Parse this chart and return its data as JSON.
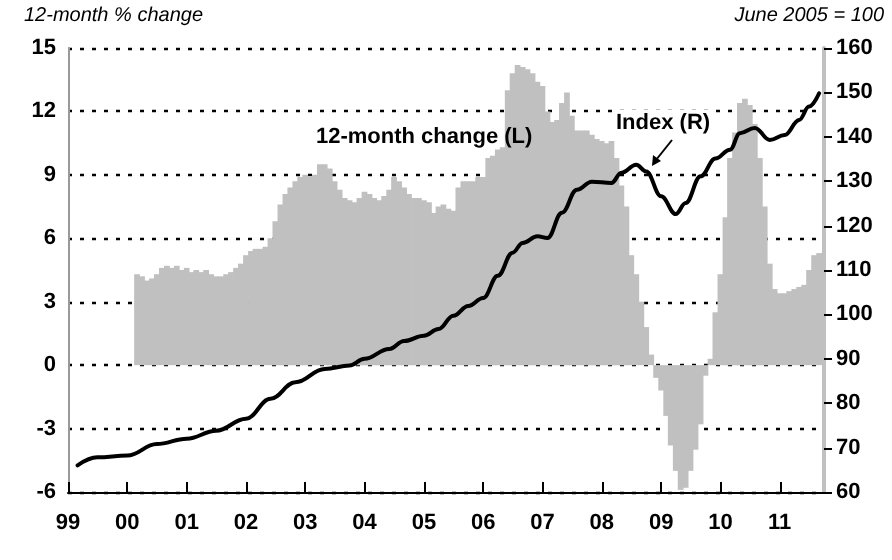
{
  "chart_data": {
    "type": "bar",
    "ylabel": "12-month % change",
    "y2label": "June 2005 = 100",
    "xlim": [
      "1999-01",
      "2011-10"
    ],
    "xticks": [
      {
        "value": "1999-01",
        "label": "99"
      },
      {
        "value": "2000-01",
        "label": "00"
      },
      {
        "value": "2001-01",
        "label": "01"
      },
      {
        "value": "2002-01",
        "label": "02"
      },
      {
        "value": "2003-01",
        "label": "03"
      },
      {
        "value": "2004-01",
        "label": "04"
      },
      {
        "value": "2005-01",
        "label": "05"
      },
      {
        "value": "2006-01",
        "label": "06"
      },
      {
        "value": "2007-01",
        "label": "07"
      },
      {
        "value": "2008-01",
        "label": "08"
      },
      {
        "value": "2009-01",
        "label": "09"
      },
      {
        "value": "2010-01",
        "label": "10"
      },
      {
        "value": "2011-01",
        "label": "11"
      }
    ],
    "ylim": [
      -6,
      15
    ],
    "yticks": [
      -6,
      -3,
      0,
      3,
      6,
      9,
      12,
      15
    ],
    "y2lim": [
      60,
      160
    ],
    "y2ticks": [
      60,
      70,
      80,
      90,
      100,
      110,
      120,
      130,
      140,
      150,
      160
    ],
    "grid": "y",
    "legend": false,
    "series": [
      {
        "name": "12-month change (L)",
        "color": "#c0c0c0",
        "x": [
          "2000-03",
          "2000-04",
          "2000-05",
          "2000-06",
          "2000-07",
          "2000-08",
          "2000-09",
          "2000-10",
          "2000-11",
          "2000-12",
          "2001-01",
          "2001-02",
          "2001-03",
          "2001-04",
          "2001-05",
          "2001-06",
          "2001-07",
          "2001-08",
          "2001-09",
          "2001-10",
          "2001-11",
          "2001-12",
          "2002-01",
          "2002-02",
          "2002-03",
          "2002-04",
          "2002-05",
          "2002-06",
          "2002-07",
          "2002-08",
          "2002-09",
          "2002-10",
          "2002-11",
          "2002-12",
          "2003-01",
          "2003-02",
          "2003-03",
          "2003-04",
          "2003-05",
          "2003-06",
          "2003-07",
          "2003-08",
          "2003-09",
          "2003-10",
          "2003-11",
          "2003-12",
          "2004-01",
          "2004-02",
          "2004-03",
          "2004-04",
          "2004-05",
          "2004-06",
          "2004-07",
          "2004-08",
          "2004-09",
          "2004-10",
          "2004-11",
          "2004-12",
          "2005-01",
          "2005-02",
          "2005-03",
          "2005-04",
          "2005-05",
          "2005-06",
          "2005-07",
          "2005-08",
          "2005-09",
          "2005-10",
          "2005-11",
          "2005-12",
          "2006-01",
          "2006-02",
          "2006-03",
          "2006-04",
          "2006-05",
          "2006-06",
          "2006-07",
          "2006-08",
          "2006-09",
          "2006-10",
          "2006-11",
          "2006-12",
          "2007-01",
          "2007-02",
          "2007-03",
          "2007-04",
          "2007-05",
          "2007-06",
          "2007-07",
          "2007-08",
          "2007-09",
          "2007-10",
          "2007-11",
          "2007-12",
          "2008-01",
          "2008-02",
          "2008-03",
          "2008-04",
          "2008-05",
          "2008-06",
          "2008-07",
          "2008-08",
          "2008-09",
          "2008-10",
          "2008-11",
          "2008-12",
          "2009-01",
          "2009-02",
          "2009-03",
          "2009-04",
          "2009-05",
          "2009-06",
          "2009-07",
          "2009-08",
          "2009-09",
          "2009-10",
          "2009-11",
          "2009-12",
          "2010-01",
          "2010-02",
          "2010-03",
          "2010-04",
          "2010-05",
          "2010-06",
          "2010-07",
          "2010-08",
          "2010-09",
          "2010-10",
          "2010-11",
          "2010-12",
          "2011-01",
          "2011-02",
          "2011-03",
          "2011-04",
          "2011-05",
          "2011-06",
          "2011-07",
          "2011-08",
          "2011-09"
        ],
        "values": [
          4.3,
          4.2,
          4.0,
          4.1,
          4.3,
          4.6,
          4.7,
          4.6,
          4.7,
          4.5,
          4.6,
          4.4,
          4.5,
          4.4,
          4.5,
          4.3,
          4.2,
          4.2,
          4.3,
          4.4,
          4.6,
          4.8,
          5.2,
          5.4,
          5.5,
          5.5,
          5.6,
          6.0,
          6.8,
          7.6,
          8.1,
          8.4,
          8.7,
          8.9,
          9.0,
          8.9,
          9.0,
          9.5,
          9.5,
          9.3,
          8.7,
          8.3,
          7.9,
          7.8,
          7.7,
          7.9,
          8.2,
          8.1,
          7.9,
          7.8,
          8.0,
          8.3,
          8.9,
          8.7,
          8.4,
          8.1,
          7.9,
          7.9,
          7.8,
          7.7,
          7.2,
          7.5,
          7.6,
          7.4,
          7.3,
          8.4,
          8.7,
          8.7,
          8.7,
          8.9,
          8.9,
          9.8,
          9.9,
          10.2,
          10.3,
          13.0,
          13.8,
          14.2,
          14.1,
          14.0,
          13.8,
          13.4,
          13.2,
          12.0,
          11.5,
          11.6,
          12.4,
          12.9,
          11.8,
          11.1,
          11.1,
          11.1,
          10.9,
          10.7,
          10.6,
          10.5,
          10.6,
          9.8,
          8.5,
          7.5,
          5.2,
          4.3,
          3.0,
          1.8,
          0.5,
          -0.6,
          -1.2,
          -2.4,
          -3.8,
          -5.0,
          -5.9,
          -5.8,
          -5.0,
          -4.0,
          -2.8,
          -0.5,
          0.3,
          2.5,
          4.3,
          7.0,
          9.8,
          11.0,
          12.4,
          12.6,
          12.3,
          11.4,
          9.8,
          7.5,
          4.8,
          3.6,
          3.4,
          3.4,
          3.5,
          3.6,
          3.7,
          3.8,
          4.5,
          5.2,
          5.3
        ]
      },
      {
        "name": "Index (R)",
        "type": "line",
        "axis": "y2",
        "color": "#000000",
        "x": [
          "1999-03",
          "1999-07",
          "2000-01",
          "2000-07",
          "2001-01",
          "2001-07",
          "2002-01",
          "2002-06",
          "2002-11",
          "2003-05",
          "2003-10",
          "2004-01",
          "2004-06",
          "2004-09",
          "2005-01",
          "2005-04",
          "2005-07",
          "2005-10",
          "2006-01",
          "2006-04",
          "2006-07",
          "2006-09",
          "2006-12",
          "2007-02",
          "2007-05",
          "2007-08",
          "2007-11",
          "2008-03",
          "2008-05",
          "2008-08",
          "2008-10",
          "2009-01",
          "2009-04",
          "2009-06",
          "2009-09",
          "2009-12",
          "2010-03",
          "2010-05",
          "2010-08",
          "2010-11",
          "2011-02",
          "2011-05",
          "2011-07",
          "2011-09"
        ],
        "values": [
          66.0,
          67.8,
          68.2,
          70.8,
          72.0,
          73.8,
          76.5,
          81.0,
          84.7,
          87.7,
          88.5,
          90.0,
          92.2,
          94.0,
          95.2,
          96.7,
          99.7,
          101.9,
          103.7,
          108.7,
          113.9,
          116.1,
          117.6,
          117.2,
          122.9,
          128.1,
          129.9,
          129.6,
          131.9,
          133.7,
          132.2,
          126.6,
          122.6,
          125.1,
          131.1,
          135.1,
          137.1,
          140.8,
          142.0,
          139.3,
          140.4,
          143.8,
          146.8,
          149.8
        ]
      }
    ]
  }
}
